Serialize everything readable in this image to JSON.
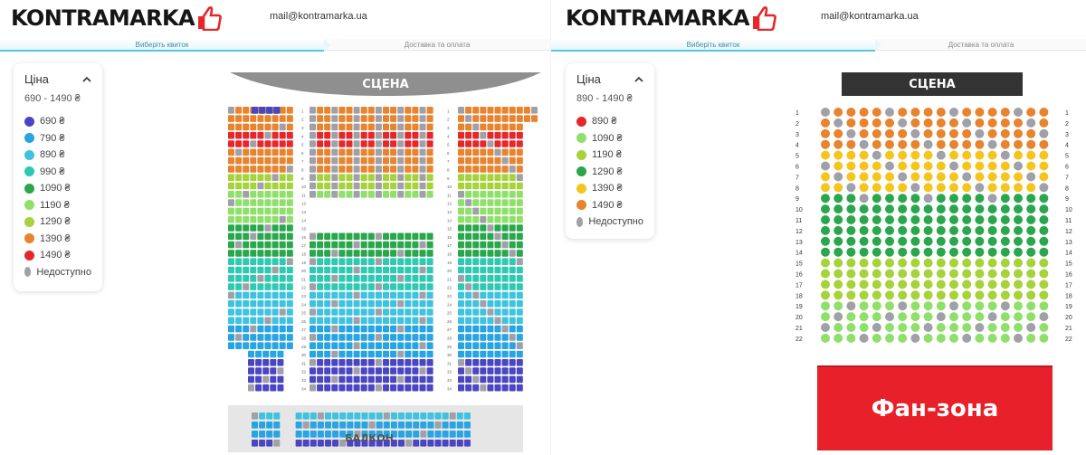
{
  "left": {
    "logo": "KONTRAMARKA",
    "email": "mail@kontramarka.ua",
    "steps": [
      "Виберіть квиток",
      "Доставка та оплата"
    ],
    "legend": {
      "title": "Ціна",
      "range": "690 - 1490 ₴",
      "items": [
        {
          "label": "690 ₴",
          "color": "#4a45c2"
        },
        {
          "label": "790 ₴",
          "color": "#27a4e2"
        },
        {
          "label": "890 ₴",
          "color": "#3fc2de"
        },
        {
          "label": "990 ₴",
          "color": "#2ec9b2"
        },
        {
          "label": "1090 ₴",
          "color": "#2aa74d"
        },
        {
          "label": "1190 ₴",
          "color": "#8fe06a"
        },
        {
          "label": "1290 ₴",
          "color": "#a6d23a"
        },
        {
          "label": "1390 ₴",
          "color": "#e8832e"
        },
        {
          "label": "1490 ₴",
          "color": "#e5272c"
        },
        {
          "label": "Недоступно",
          "color": "#a0a0a8"
        }
      ]
    },
    "stage": "СЦЕНА",
    "balcony": "БАЛКОН"
  },
  "right": {
    "logo": "KONTRAMARKA",
    "email": "mail@kontramarka.ua",
    "steps": [
      "Виберіть квиток",
      "Доставка та оплата"
    ],
    "legend": {
      "title": "Ціна",
      "range": "890 - 1490 ₴",
      "items": [
        {
          "label": "890 ₴",
          "color": "#e5272c"
        },
        {
          "label": "1090 ₴",
          "color": "#8fe06a"
        },
        {
          "label": "1190 ₴",
          "color": "#a6d23a"
        },
        {
          "label": "1290 ₴",
          "color": "#2aa74d"
        },
        {
          "label": "1390 ₴",
          "color": "#f5c51e"
        },
        {
          "label": "1490 ₴",
          "color": "#e8832e"
        },
        {
          "label": "Недоступно",
          "color": "#a0a0a8"
        }
      ]
    },
    "stage": "СЦЕНА",
    "fanzone": "Фан-зона"
  }
}
